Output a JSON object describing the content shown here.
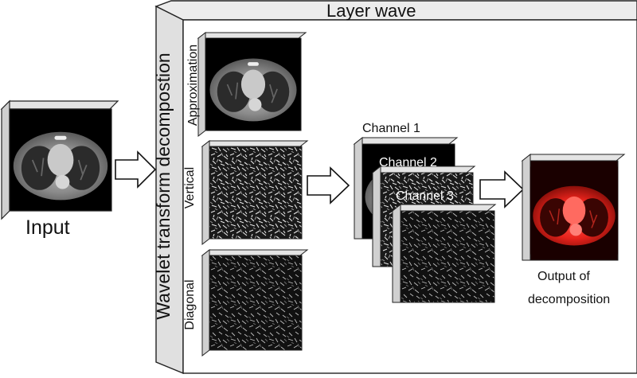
{
  "input_label": "Input",
  "layer_title": "Layer wave",
  "side_label": "Wavelet transform decompostion",
  "subbands": [
    "Approximation",
    "Vertical",
    "Diagonal"
  ],
  "channels": [
    "Channel 1",
    "Channel 2",
    "Channel 3"
  ],
  "output_label": [
    "Output of",
    "decomposition"
  ],
  "colors": {
    "output_tint": "#e8231c",
    "block_edge": "#222222"
  }
}
